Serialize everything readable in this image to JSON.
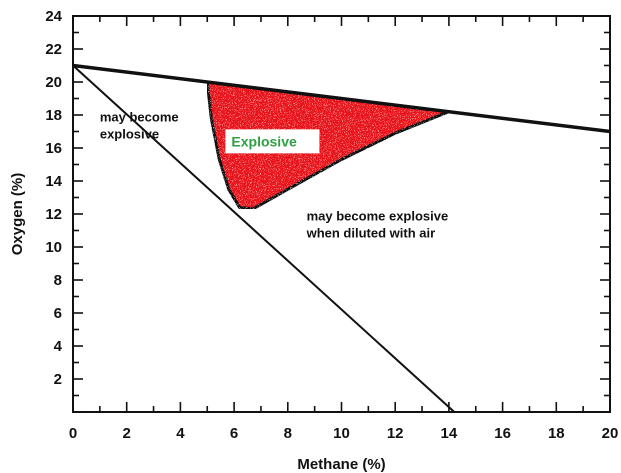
{
  "chart_data": {
    "type": "line",
    "title": "",
    "xlabel": "Methane (%)",
    "ylabel": "Oxygen (%)",
    "xlim": [
      0,
      20
    ],
    "ylim": [
      0,
      24
    ],
    "x_ticks": [
      0,
      2,
      4,
      6,
      8,
      10,
      12,
      14,
      16,
      18,
      20
    ],
    "y_ticks": [
      2,
      4,
      6,
      8,
      10,
      12,
      14,
      16,
      18,
      20,
      22,
      24
    ],
    "grid": false,
    "series": [
      {
        "x": [
          0,
          20
        ],
        "y": [
          21,
          17
        ]
      },
      {
        "x": [
          0,
          14.2
        ],
        "y": [
          21,
          0
        ]
      }
    ],
    "regions": [
      {
        "label": "Explosive",
        "color": "#e8181c",
        "boundary": [
          [
            5,
            20
          ],
          [
            5.15,
            17.8
          ],
          [
            5.45,
            15.3
          ],
          [
            5.8,
            13.5
          ],
          [
            6.2,
            12.4
          ],
          [
            6.7,
            12.3
          ],
          [
            8,
            13.5
          ],
          [
            10,
            15.3
          ],
          [
            12,
            16.9
          ],
          [
            14,
            18.2
          ],
          [
            5,
            20
          ]
        ]
      }
    ],
    "annotations": [
      {
        "text_lines": [
          "may become",
          "explosive"
        ],
        "x": 1,
        "y": 17.6
      },
      {
        "text_lines": [
          "Explosive"
        ],
        "x": 5.9,
        "y": 16.1,
        "color": "#2ea043"
      },
      {
        "text_lines": [
          "may become explosive",
          "when diluted with air"
        ],
        "x": 8.7,
        "y": 11.6
      }
    ]
  }
}
